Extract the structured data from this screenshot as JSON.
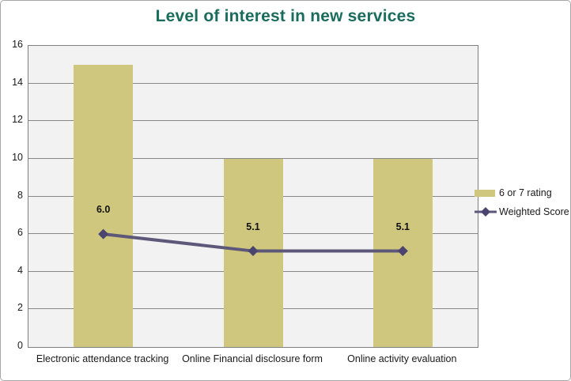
{
  "title": "Level of interest in new services",
  "colors": {
    "bar": "#cfc77d",
    "line": "#5d587a",
    "marker": "#4a446e",
    "title": "#1a6d5c",
    "plot_bg": "#f2f2f2",
    "grid": "#878787",
    "plot_border": "#808080",
    "outer_border": "#a6a6a6"
  },
  "legend": [
    {
      "label": "6 or 7 rating",
      "type": "bar"
    },
    {
      "label": "Weighted Score",
      "type": "line"
    }
  ],
  "chart_data": {
    "type": "bar",
    "title": "Level of interest in new services",
    "categories": [
      "Electronic attendance tracking",
      "Online Financial disclosure form",
      "Online activity evaluation"
    ],
    "series": [
      {
        "name": "6 or 7 rating",
        "type": "bar",
        "values": [
          15,
          10,
          10
        ]
      },
      {
        "name": "Weighted Score",
        "type": "line",
        "values": [
          6.0,
          5.1,
          5.1
        ],
        "labels": [
          "6.0",
          "5.1",
          "5.1"
        ]
      }
    ],
    "xlabel": "",
    "ylabel": "",
    "ylim": [
      0,
      16
    ],
    "ytick_step": 2,
    "grid": true,
    "legend_position": "right"
  }
}
